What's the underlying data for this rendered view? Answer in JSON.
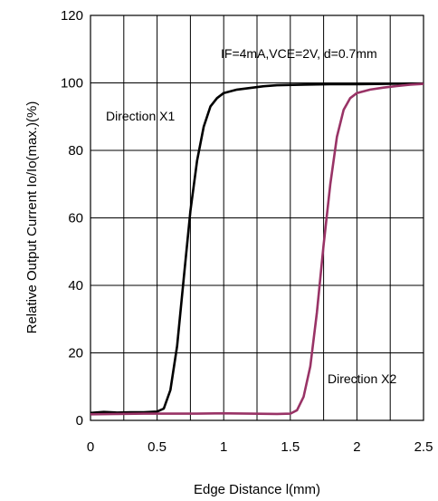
{
  "chart_data": {
    "type": "line",
    "xlabel": "Edge Distance l(mm)",
    "ylabel": "Relative Output Current Io/Io(max.)(%)",
    "xlim": [
      0,
      2.5
    ],
    "ylim": [
      0,
      120
    ],
    "x_ticks": [
      "0",
      "0.5",
      "1",
      "1.5",
      "2",
      "2.5"
    ],
    "y_ticks": [
      "0",
      "20",
      "40",
      "60",
      "80",
      "100",
      "120"
    ],
    "grid": true,
    "annotations": {
      "conditions": "IF=4mA,VCE=2V, d=0.7mm",
      "x1": "Direction X1",
      "x2": "Direction X2"
    },
    "series": [
      {
        "name": "Direction X1",
        "color": "#000000",
        "points": [
          [
            0.0,
            2.2
          ],
          [
            0.1,
            2.5
          ],
          [
            0.2,
            2.3
          ],
          [
            0.3,
            2.4
          ],
          [
            0.4,
            2.4
          ],
          [
            0.5,
            2.6
          ],
          [
            0.55,
            3.5
          ],
          [
            0.6,
            9
          ],
          [
            0.65,
            22
          ],
          [
            0.7,
            42
          ],
          [
            0.75,
            62
          ],
          [
            0.8,
            77
          ],
          [
            0.85,
            87
          ],
          [
            0.9,
            93
          ],
          [
            0.95,
            95.5
          ],
          [
            1.0,
            97
          ],
          [
            1.1,
            98
          ],
          [
            1.2,
            98.5
          ],
          [
            1.3,
            99
          ],
          [
            1.4,
            99.3
          ],
          [
            1.6,
            99.5
          ],
          [
            1.8,
            99.6
          ],
          [
            2.0,
            99.6
          ],
          [
            2.2,
            99.7
          ],
          [
            2.4,
            99.8
          ],
          [
            2.5,
            99.8
          ]
        ]
      },
      {
        "name": "Direction X2",
        "color": "#993366",
        "points": [
          [
            0.0,
            1.8
          ],
          [
            0.2,
            1.9
          ],
          [
            0.4,
            2.0
          ],
          [
            0.6,
            2.0
          ],
          [
            0.8,
            2.0
          ],
          [
            1.0,
            2.1
          ],
          [
            1.2,
            2.0
          ],
          [
            1.4,
            1.9
          ],
          [
            1.5,
            2.0
          ],
          [
            1.55,
            3.0
          ],
          [
            1.6,
            7
          ],
          [
            1.65,
            16
          ],
          [
            1.7,
            32
          ],
          [
            1.75,
            52
          ],
          [
            1.8,
            70
          ],
          [
            1.85,
            84
          ],
          [
            1.9,
            92
          ],
          [
            1.95,
            95.5
          ],
          [
            2.0,
            97
          ],
          [
            2.1,
            98
          ],
          [
            2.2,
            98.6
          ],
          [
            2.3,
            99.1
          ],
          [
            2.4,
            99.5
          ],
          [
            2.5,
            99.7
          ]
        ]
      }
    ]
  }
}
